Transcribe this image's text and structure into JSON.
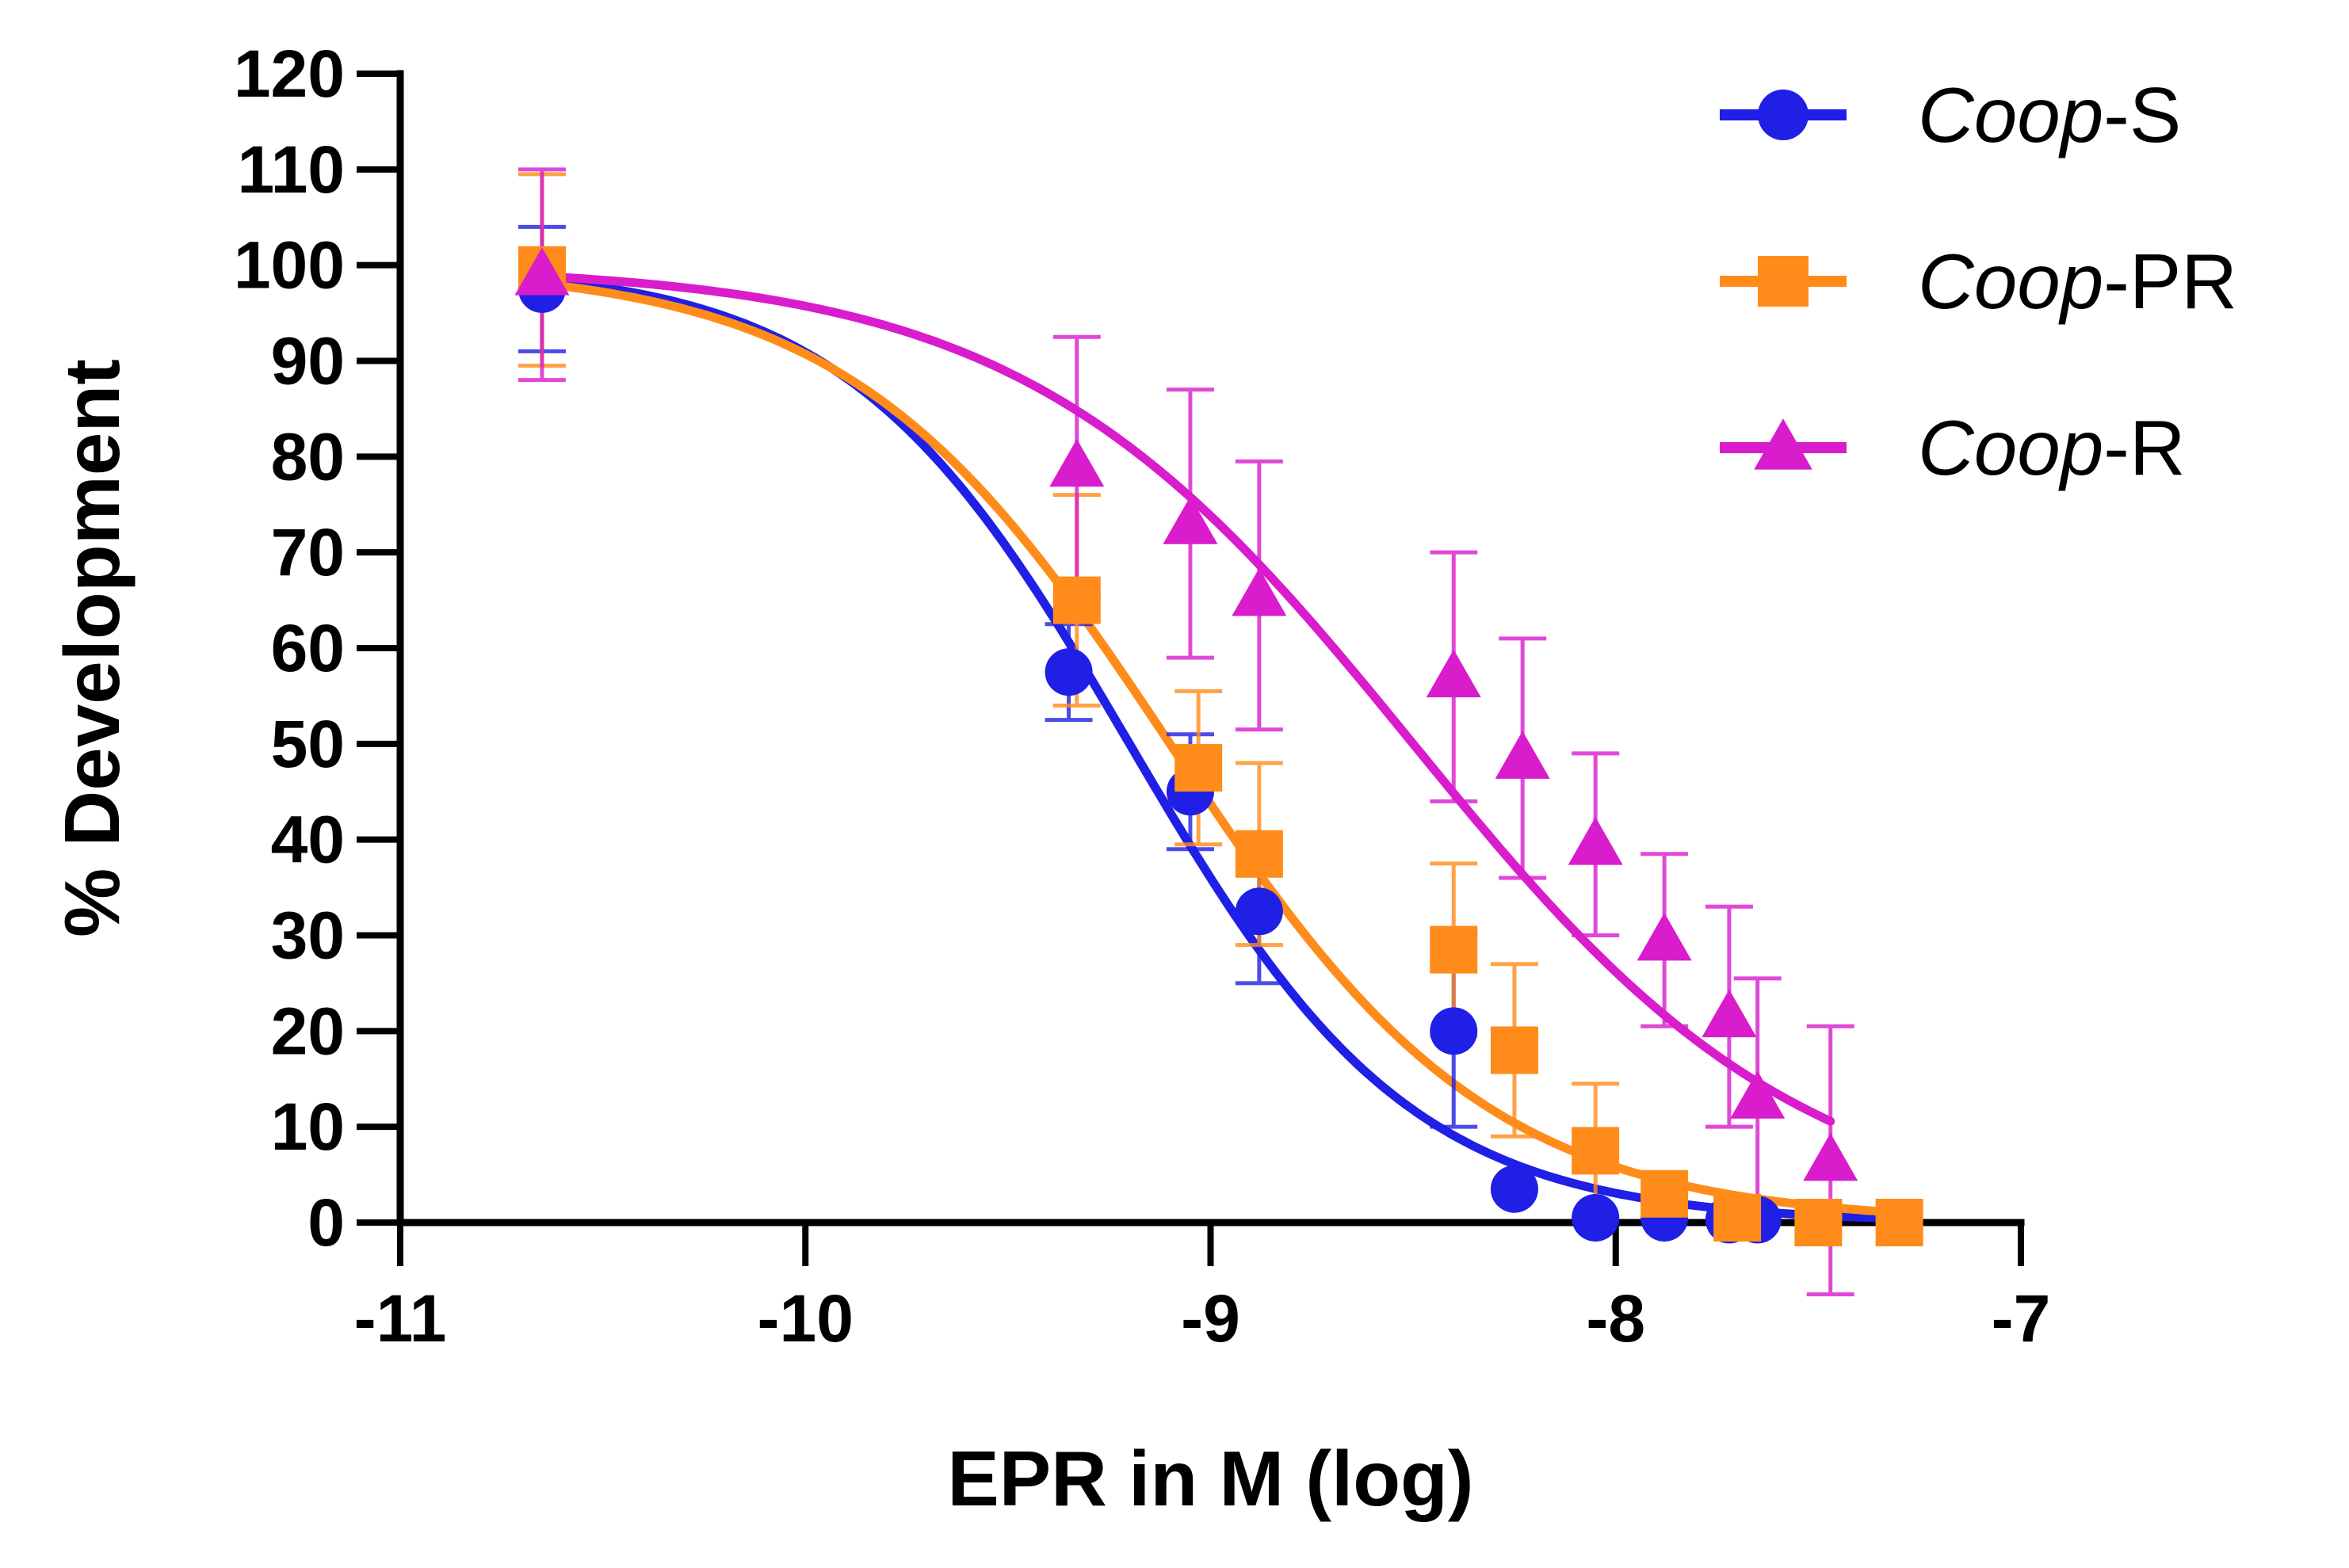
{
  "chart_data": {
    "type": "scatter",
    "title": "",
    "xlabel": "EPR in M (log)",
    "ylabel": "% Development",
    "xlim": [
      -11,
      -7
    ],
    "ylim": [
      0,
      120
    ],
    "x_ticks": [
      "-11",
      "-10",
      "-9",
      "-8",
      "-7"
    ],
    "y_ticks": [
      "0",
      "10",
      "20",
      "30",
      "40",
      "50",
      "60",
      "70",
      "80",
      "90",
      "100",
      "110",
      "120"
    ],
    "grid": false,
    "legend_position": "top-right",
    "series": [
      {
        "name": "Coop-S",
        "name_italic": "Coop",
        "name_suffix": "-S",
        "color": "#1f1fe6",
        "marker": "circle",
        "fit": {
          "top": 100,
          "bottom": 0,
          "logIC50": -9.2,
          "hill": -1.25
        },
        "points": [
          {
            "x": -10.65,
            "y": 97.5,
            "err": 6.5
          },
          {
            "x": -9.35,
            "y": 57.5,
            "err": 5
          },
          {
            "x": -9.05,
            "y": 45,
            "err": 6
          },
          {
            "x": -8.88,
            "y": 32.5,
            "err": 7.5
          },
          {
            "x": -8.4,
            "y": 20,
            "err": 10
          },
          {
            "x": -8.25,
            "y": 3.5,
            "err": 0
          },
          {
            "x": -8.05,
            "y": 0.5,
            "err": 0
          },
          {
            "x": -7.88,
            "y": 0.5,
            "err": 0
          },
          {
            "x": -7.72,
            "y": 0.3,
            "err": 0
          },
          {
            "x": -7.65,
            "y": 0.3,
            "err": 0
          },
          {
            "x": -7.3,
            "y": 0,
            "err": 0
          }
        ]
      },
      {
        "name": "Coop-PR",
        "name_italic": "Coop",
        "name_suffix": "-PR",
        "color": "#ff8c1a",
        "marker": "square",
        "fit": {
          "top": 100,
          "bottom": 0,
          "logIC50": -9.1,
          "hill": -1.1
        },
        "points": [
          {
            "x": -10.65,
            "y": 99.5,
            "err": 10
          },
          {
            "x": -9.33,
            "y": 65,
            "err": 11
          },
          {
            "x": -9.03,
            "y": 47.5,
            "err": 8
          },
          {
            "x": -8.88,
            "y": 38.5,
            "err": 9.5
          },
          {
            "x": -8.4,
            "y": 28.5,
            "err": 9
          },
          {
            "x": -8.25,
            "y": 18,
            "err": 9
          },
          {
            "x": -8.05,
            "y": 7.5,
            "err": 7
          },
          {
            "x": -7.88,
            "y": 3,
            "err": 0
          },
          {
            "x": -7.7,
            "y": 0.5,
            "err": 0
          },
          {
            "x": -7.5,
            "y": 0,
            "err": 0
          },
          {
            "x": -7.3,
            "y": 0,
            "err": 0
          }
        ]
      },
      {
        "name": "Coop-R",
        "name_italic": "Coop",
        "name_suffix": "-R",
        "color": "#d91ccc",
        "marker": "triangle",
        "fit": {
          "top": 100,
          "bottom": 0,
          "logIC50": -8.5,
          "hill": -0.9
        },
        "points": [
          {
            "x": -10.65,
            "y": 99,
            "err": 11
          },
          {
            "x": -9.33,
            "y": 79,
            "err": 13.5
          },
          {
            "x": -9.05,
            "y": 73,
            "err": 14
          },
          {
            "x": -8.88,
            "y": 65.5,
            "err": 14
          },
          {
            "x": -8.4,
            "y": 57,
            "err": 13
          },
          {
            "x": -8.23,
            "y": 48.5,
            "err": 12.5
          },
          {
            "x": -8.05,
            "y": 39.5,
            "err": 9.5
          },
          {
            "x": -7.88,
            "y": 29.5,
            "err": 9
          },
          {
            "x": -7.72,
            "y": 21.5,
            "err": 11.5
          },
          {
            "x": -7.65,
            "y": 13,
            "err": 12.5
          },
          {
            "x": -7.47,
            "y": 6.5,
            "err": 14
          }
        ]
      }
    ]
  }
}
